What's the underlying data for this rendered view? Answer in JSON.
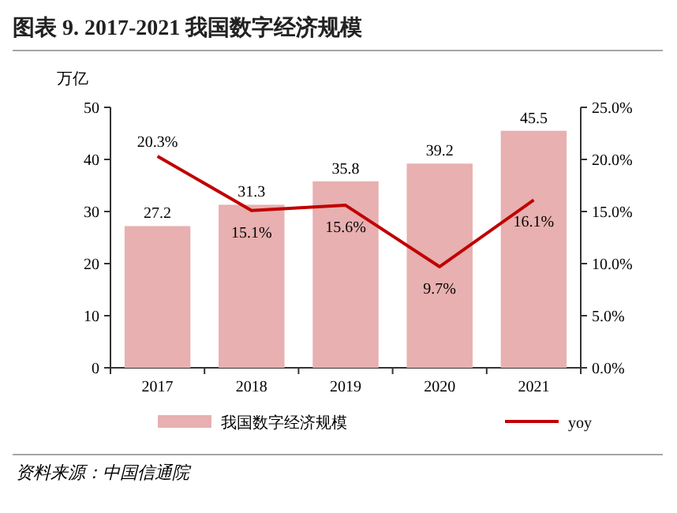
{
  "chart_data": {
    "type": "bar",
    "title": "图表 9. 2017-2021 我国数字经济规模",
    "ylabel": "万亿",
    "categories": [
      "2017",
      "2018",
      "2019",
      "2020",
      "2021"
    ],
    "series": [
      {
        "name": "我国数字经济规模",
        "color": "#e8b0b0",
        "values": [
          27.2,
          31.3,
          35.8,
          39.2,
          45.5
        ],
        "value_labels": [
          "27.2",
          "31.3",
          "35.8",
          "39.2",
          "45.5"
        ]
      },
      {
        "name": "yoy",
        "type": "line",
        "axis": "y2",
        "color": "#c00000",
        "values": [
          20.3,
          15.1,
          15.6,
          9.7,
          16.1
        ],
        "value_labels": [
          "20.3%",
          "15.1%",
          "15.6%",
          "9.7%",
          "16.1%"
        ]
      }
    ],
    "ylim": [
      0,
      50
    ],
    "yticks": [
      0,
      10,
      20,
      30,
      40,
      50
    ],
    "y2lim": [
      0,
      25
    ],
    "y2ticks": [
      {
        "value": 0,
        "label": "0.0%"
      },
      {
        "value": 5,
        "label": "5.0%"
      },
      {
        "value": 10,
        "label": "10.0%"
      },
      {
        "value": 15,
        "label": "15.0%"
      },
      {
        "value": 20,
        "label": "20.0%"
      },
      {
        "value": 25,
        "label": "25.0%"
      }
    ],
    "legend": "bottom",
    "grid": false,
    "annotations": [
      "资料来源：中国信通院"
    ]
  }
}
